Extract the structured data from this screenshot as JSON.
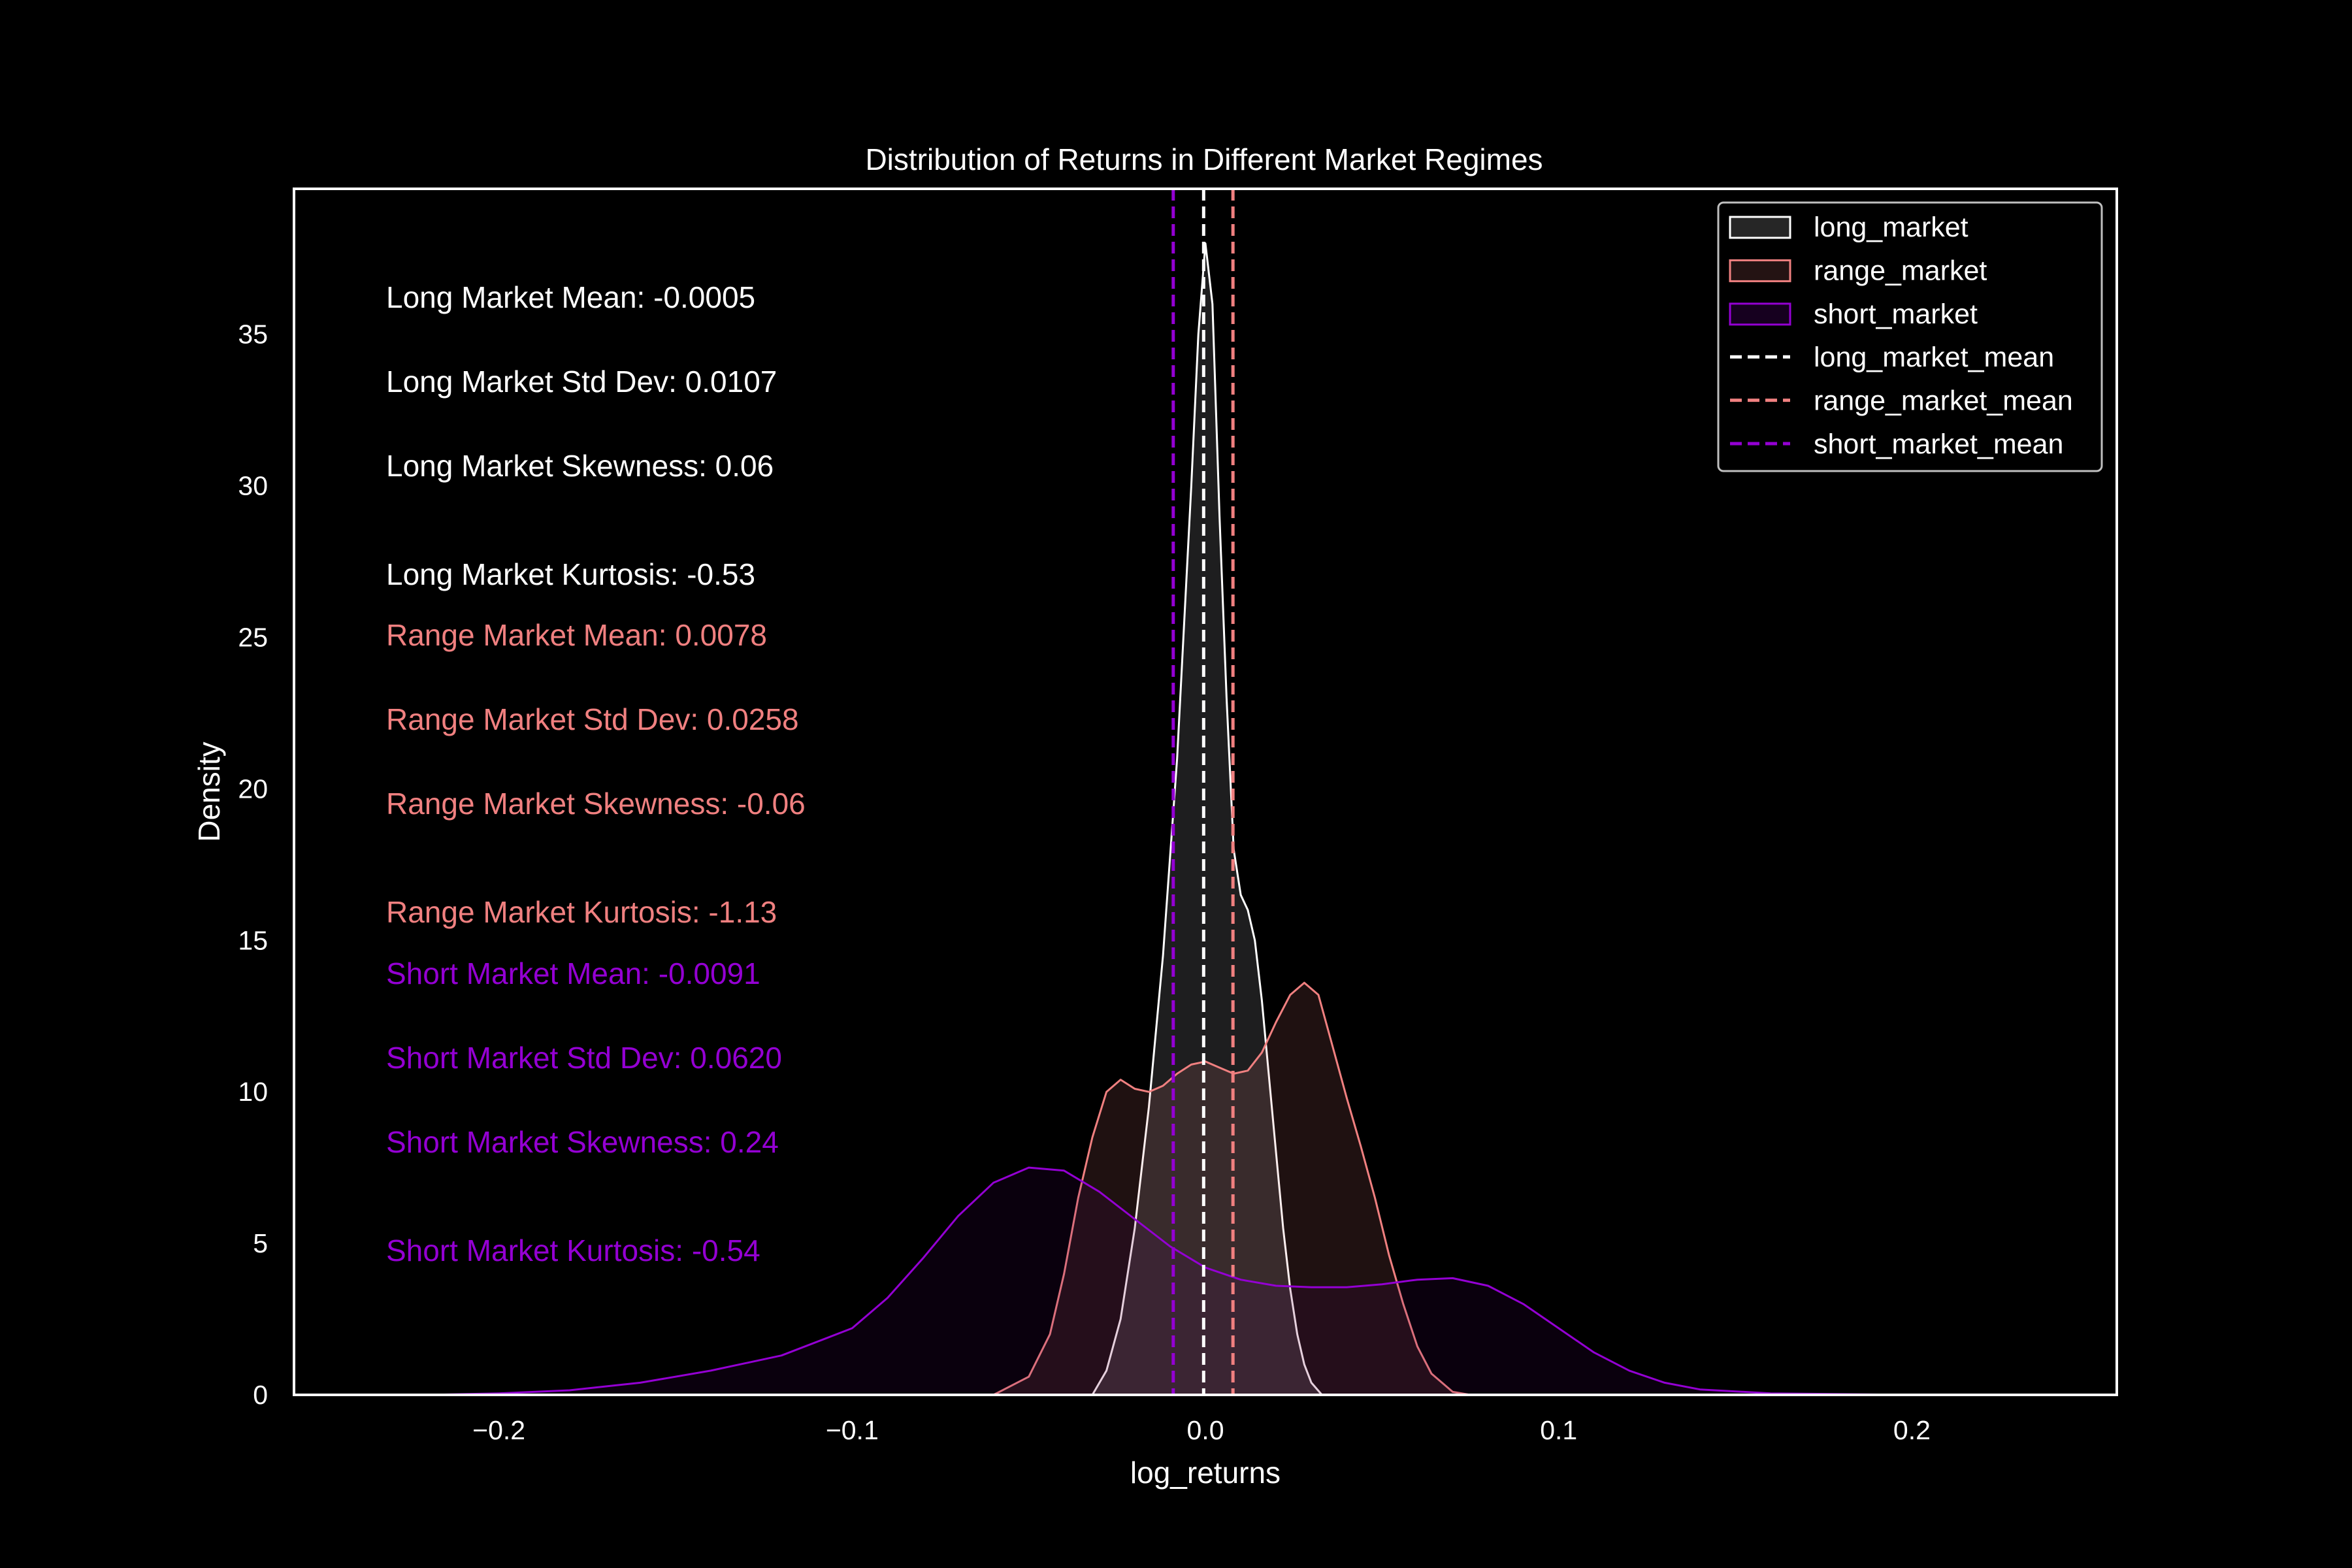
{
  "chart_data": {
    "type": "area",
    "title": "Distribution of Returns in Different Market Regimes",
    "xlabel": "log_returns",
    "ylabel": "Density",
    "xlim": [
      -0.258,
      0.258
    ],
    "ylim": [
      0,
      39.8
    ],
    "x_ticks": [
      {
        "value": -0.2,
        "label": "−0.2"
      },
      {
        "value": -0.1,
        "label": "−0.1"
      },
      {
        "value": 0.0,
        "label": "0.0"
      },
      {
        "value": 0.1,
        "label": "0.1"
      },
      {
        "value": 0.2,
        "label": "0.2"
      }
    ],
    "y_ticks": [
      {
        "value": 0,
        "label": "0"
      },
      {
        "value": 5,
        "label": "5"
      },
      {
        "value": 10,
        "label": "10"
      },
      {
        "value": 15,
        "label": "15"
      },
      {
        "value": 20,
        "label": "20"
      },
      {
        "value": 25,
        "label": "25"
      },
      {
        "value": 30,
        "label": "30"
      },
      {
        "value": 35,
        "label": "35"
      }
    ],
    "grid": false,
    "legend_position": "upper right",
    "series": [
      {
        "name": "long_market",
        "color": "#ffffff",
        "fill": "#e8eaf2",
        "points": [
          [
            -0.032,
            0
          ],
          [
            -0.028,
            0.8
          ],
          [
            -0.024,
            2.5
          ],
          [
            -0.02,
            5.5
          ],
          [
            -0.016,
            9.5
          ],
          [
            -0.012,
            14.5
          ],
          [
            -0.008,
            21
          ],
          [
            -0.004,
            30
          ],
          [
            -0.002,
            35
          ],
          [
            0.0,
            38
          ],
          [
            0.002,
            36
          ],
          [
            0.004,
            29
          ],
          [
            0.006,
            23
          ],
          [
            0.008,
            18
          ],
          [
            0.01,
            16.5
          ],
          [
            0.012,
            16
          ],
          [
            0.014,
            15
          ],
          [
            0.016,
            13
          ],
          [
            0.018,
            10.5
          ],
          [
            0.02,
            8
          ],
          [
            0.022,
            5.5
          ],
          [
            0.024,
            3.5
          ],
          [
            0.026,
            2
          ],
          [
            0.028,
            1
          ],
          [
            0.03,
            0.4
          ],
          [
            0.033,
            0
          ]
        ]
      },
      {
        "name": "range_market",
        "color": "#f08080",
        "fill": "#f08080",
        "points": [
          [
            -0.06,
            0
          ],
          [
            -0.05,
            0.6
          ],
          [
            -0.044,
            2
          ],
          [
            -0.04,
            4
          ],
          [
            -0.036,
            6.5
          ],
          [
            -0.032,
            8.5
          ],
          [
            -0.028,
            10
          ],
          [
            -0.024,
            10.4
          ],
          [
            -0.02,
            10.1
          ],
          [
            -0.016,
            10
          ],
          [
            -0.012,
            10.2
          ],
          [
            -0.008,
            10.6
          ],
          [
            -0.004,
            10.9
          ],
          [
            0.0,
            11
          ],
          [
            0.004,
            10.8
          ],
          [
            0.008,
            10.6
          ],
          [
            0.012,
            10.7
          ],
          [
            0.016,
            11.3
          ],
          [
            0.02,
            12.3
          ],
          [
            0.024,
            13.2
          ],
          [
            0.028,
            13.6
          ],
          [
            0.032,
            13.2
          ],
          [
            0.036,
            11.5
          ],
          [
            0.04,
            9.8
          ],
          [
            0.044,
            8.2
          ],
          [
            0.048,
            6.5
          ],
          [
            0.052,
            4.6
          ],
          [
            0.056,
            3
          ],
          [
            0.06,
            1.6
          ],
          [
            0.064,
            0.7
          ],
          [
            0.07,
            0.1
          ],
          [
            0.075,
            0
          ]
        ]
      },
      {
        "name": "short_market",
        "color": "#9400d3",
        "fill": "#4b0066",
        "points": [
          [
            -0.22,
            0
          ],
          [
            -0.2,
            0.05
          ],
          [
            -0.18,
            0.15
          ],
          [
            -0.16,
            0.4
          ],
          [
            -0.14,
            0.8
          ],
          [
            -0.12,
            1.3
          ],
          [
            -0.1,
            2.2
          ],
          [
            -0.09,
            3.2
          ],
          [
            -0.08,
            4.5
          ],
          [
            -0.07,
            5.9
          ],
          [
            -0.06,
            7
          ],
          [
            -0.05,
            7.5
          ],
          [
            -0.04,
            7.4
          ],
          [
            -0.03,
            6.7
          ],
          [
            -0.02,
            5.8
          ],
          [
            -0.01,
            4.9
          ],
          [
            0.0,
            4.2
          ],
          [
            0.01,
            3.8
          ],
          [
            0.02,
            3.6
          ],
          [
            0.03,
            3.55
          ],
          [
            0.04,
            3.55
          ],
          [
            0.05,
            3.65
          ],
          [
            0.06,
            3.8
          ],
          [
            0.07,
            3.85
          ],
          [
            0.08,
            3.6
          ],
          [
            0.09,
            3
          ],
          [
            0.1,
            2.2
          ],
          [
            0.11,
            1.4
          ],
          [
            0.12,
            0.8
          ],
          [
            0.13,
            0.4
          ],
          [
            0.14,
            0.18
          ],
          [
            0.16,
            0.05
          ],
          [
            0.2,
            0
          ]
        ]
      }
    ],
    "mean_lines": [
      {
        "name": "long_market_mean",
        "x": -0.0005,
        "color": "#ffffff"
      },
      {
        "name": "range_market_mean",
        "x": 0.0078,
        "color": "#f08080"
      },
      {
        "name": "short_market_mean",
        "x": -0.0091,
        "color": "#9400d3"
      }
    ],
    "annotations": [
      {
        "text": "Long Market Mean: -0.0005",
        "color": "#ffffff"
      },
      {
        "text": "Long Market Std Dev: 0.0107",
        "color": "#ffffff"
      },
      {
        "text": "Long Market Skewness: 0.06",
        "color": "#ffffff"
      },
      {
        "text": "Long Market Kurtosis: -0.53",
        "color": "#ffffff"
      },
      {
        "text": "Range Market Mean: 0.0078",
        "color": "#f08080"
      },
      {
        "text": "Range Market Std Dev: 0.0258",
        "color": "#f08080"
      },
      {
        "text": "Range Market Skewness: -0.06",
        "color": "#f08080"
      },
      {
        "text": "Range Market Kurtosis: -1.13",
        "color": "#f08080"
      },
      {
        "text": "Short Market Mean: -0.0091",
        "color": "#9400d3"
      },
      {
        "text": "Short Market Std Dev: 0.0620",
        "color": "#9400d3"
      },
      {
        "text": "Short Market Skewness: 0.24",
        "color": "#9400d3"
      },
      {
        "text": "Short Market Kurtosis: -0.54",
        "color": "#9400d3"
      }
    ],
    "legend": [
      {
        "label": "long_market",
        "kind": "patch",
        "color": "#ffffff"
      },
      {
        "label": "range_market",
        "kind": "patch",
        "color": "#f08080"
      },
      {
        "label": "short_market",
        "kind": "patch",
        "color": "#9400d3"
      },
      {
        "label": "long_market_mean",
        "kind": "dashed-line",
        "color": "#ffffff"
      },
      {
        "label": "range_market_mean",
        "kind": "dashed-line",
        "color": "#f08080"
      },
      {
        "label": "short_market_mean",
        "kind": "dashed-line",
        "color": "#9400d3"
      }
    ]
  }
}
